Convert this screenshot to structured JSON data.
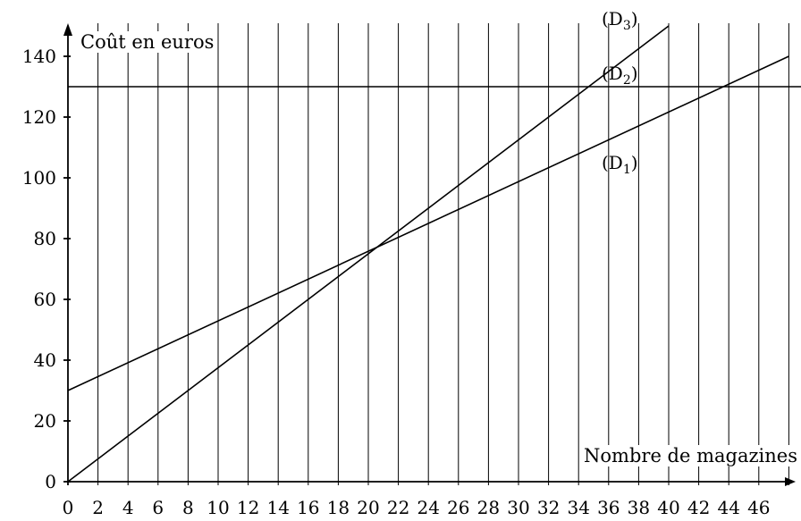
{
  "chart_data": {
    "type": "line",
    "xlabel": "Nombre de magazines",
    "ylabel": "Coût en euros",
    "x_ticks": [
      0,
      2,
      4,
      6,
      8,
      10,
      12,
      14,
      16,
      18,
      20,
      22,
      24,
      26,
      28,
      30,
      32,
      34,
      36,
      38,
      40,
      42,
      44,
      46
    ],
    "y_ticks": [
      0,
      20,
      40,
      60,
      80,
      100,
      120,
      140
    ],
    "xlim": [
      0,
      49
    ],
    "ylim": [
      0,
      150
    ],
    "grid": "vertical lines every 2 magazines",
    "series": [
      {
        "name": "(D1)",
        "label_base": "(D",
        "label_sub": "1",
        "label_close": ")",
        "points": [
          [
            0,
            30
          ],
          [
            48,
            140
          ]
        ]
      },
      {
        "name": "(D2)",
        "label_base": "(D",
        "label_sub": "2",
        "label_close": ")",
        "points": [
          [
            0,
            130
          ],
          [
            49,
            130
          ]
        ]
      },
      {
        "name": "(D3)",
        "label_base": "(D",
        "label_sub": "3",
        "label_close": ")",
        "points": [
          [
            0,
            0
          ],
          [
            40,
            150
          ]
        ]
      }
    ]
  }
}
